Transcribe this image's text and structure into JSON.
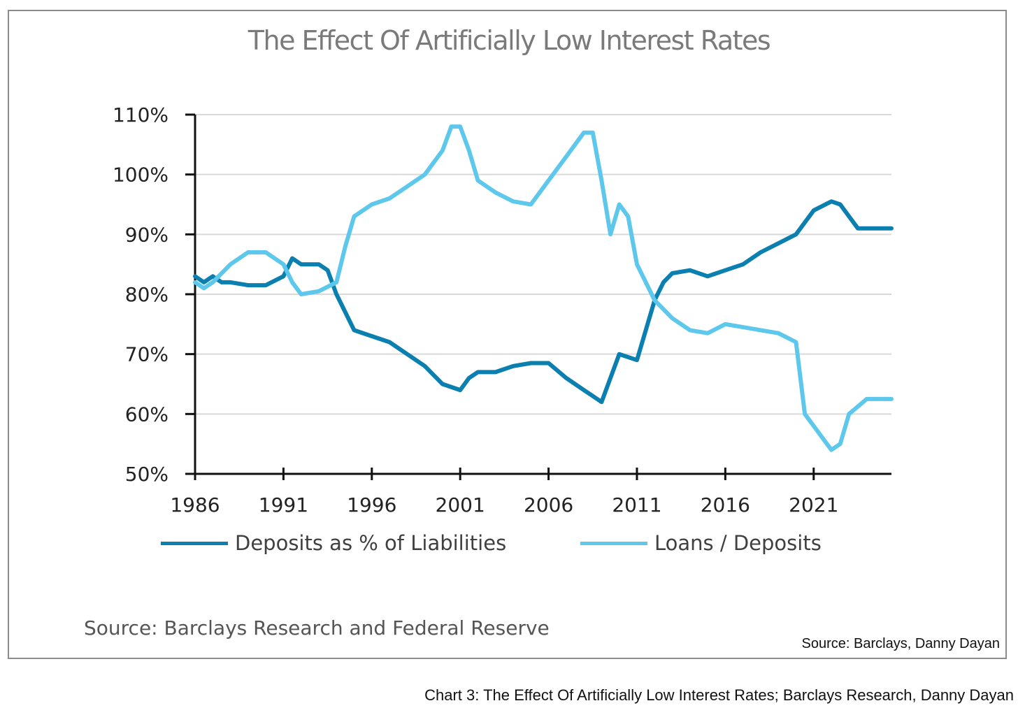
{
  "caption": "Chart 3: The Effect Of Artificially Low Interest Rates; Barclays Research, Danny Dayan",
  "source_main": "Source: Barclays Research and Federal Reserve",
  "source_right": "Source: Barclays, Danny Dayan",
  "chart_data": {
    "type": "line",
    "title": "The Effect Of Artificially Low Interest Rates",
    "xlabel": "",
    "ylabel": "",
    "xlim": [
      1986,
      2025.4
    ],
    "ylim": [
      50,
      110
    ],
    "x_ticks": [
      1986,
      1991,
      1996,
      2001,
      2006,
      2011,
      2016,
      2021
    ],
    "x_tick_labels": [
      "1986",
      "1991",
      "1996",
      "2001",
      "2006",
      "2011",
      "2016",
      "2021"
    ],
    "y_ticks": [
      50,
      60,
      70,
      80,
      90,
      100,
      110
    ],
    "y_tick_labels": [
      "50%",
      "60%",
      "70%",
      "80%",
      "90%",
      "100%",
      "110%"
    ],
    "grid": "horizontal",
    "legend_position": "bottom",
    "colors": {
      "deposits": "#0a7fb0",
      "loans": "#5dc8ec"
    },
    "series": [
      {
        "name": "Deposits as % of Liabilities",
        "color": "#0a7fb0",
        "x": [
          1986,
          1986.5,
          1987,
          1987.5,
          1988,
          1989,
          1990,
          1991,
          1991.5,
          1992,
          1993,
          1993.5,
          1994,
          1995,
          1996,
          1997,
          1998,
          1999,
          2000,
          2001,
          2001.5,
          2002,
          2003,
          2004,
          2005,
          2006,
          2007,
          2008,
          2008.5,
          2009,
          2010,
          2011,
          2012,
          2012.5,
          2013,
          2014,
          2015,
          2016,
          2017,
          2018,
          2019,
          2020,
          2021,
          2022,
          2022.5,
          2023,
          2023.5,
          2024,
          2025,
          2025.4
        ],
        "y": [
          83,
          82,
          83,
          82,
          82,
          81.5,
          81.5,
          83,
          86,
          85,
          85,
          84,
          80,
          74,
          73,
          72,
          70,
          68,
          65,
          64,
          66,
          67,
          67,
          68,
          68.5,
          68.5,
          66,
          64,
          63,
          62,
          70,
          69,
          79,
          82,
          83.5,
          84,
          83,
          84,
          85,
          87,
          88.5,
          90,
          94,
          95.5,
          95,
          93,
          91,
          91,
          91,
          91
        ]
      },
      {
        "name": "Loans / Deposits",
        "color": "#5dc8ec",
        "x": [
          1986,
          1986.5,
          1987,
          1988,
          1989,
          1990,
          1991,
          1991.5,
          1992,
          1993,
          1994,
          1994.5,
          1995,
          1996,
          1997,
          1998,
          1999,
          2000,
          2000.5,
          2001,
          2001.5,
          2002,
          2003,
          2004,
          2005,
          2006,
          2007,
          2008,
          2008.5,
          2009,
          2009.5,
          2010,
          2010.5,
          2011,
          2012,
          2013,
          2014,
          2015,
          2016,
          2017,
          2018,
          2019,
          2020,
          2020.5,
          2021,
          2022,
          2022.5,
          2023,
          2024,
          2025,
          2025.4
        ],
        "y": [
          82,
          81,
          82,
          85,
          87,
          87,
          85,
          82,
          80,
          80.5,
          82,
          88,
          93,
          95,
          96,
          98,
          100,
          104,
          108,
          108,
          104,
          99,
          97,
          95.5,
          95,
          99,
          103,
          107,
          107,
          99,
          90,
          95,
          93,
          85,
          79,
          76,
          74,
          73.5,
          75,
          74.5,
          74,
          73.5,
          72,
          60,
          58,
          54,
          55,
          60,
          62.5,
          62.5,
          62.5
        ]
      }
    ]
  }
}
